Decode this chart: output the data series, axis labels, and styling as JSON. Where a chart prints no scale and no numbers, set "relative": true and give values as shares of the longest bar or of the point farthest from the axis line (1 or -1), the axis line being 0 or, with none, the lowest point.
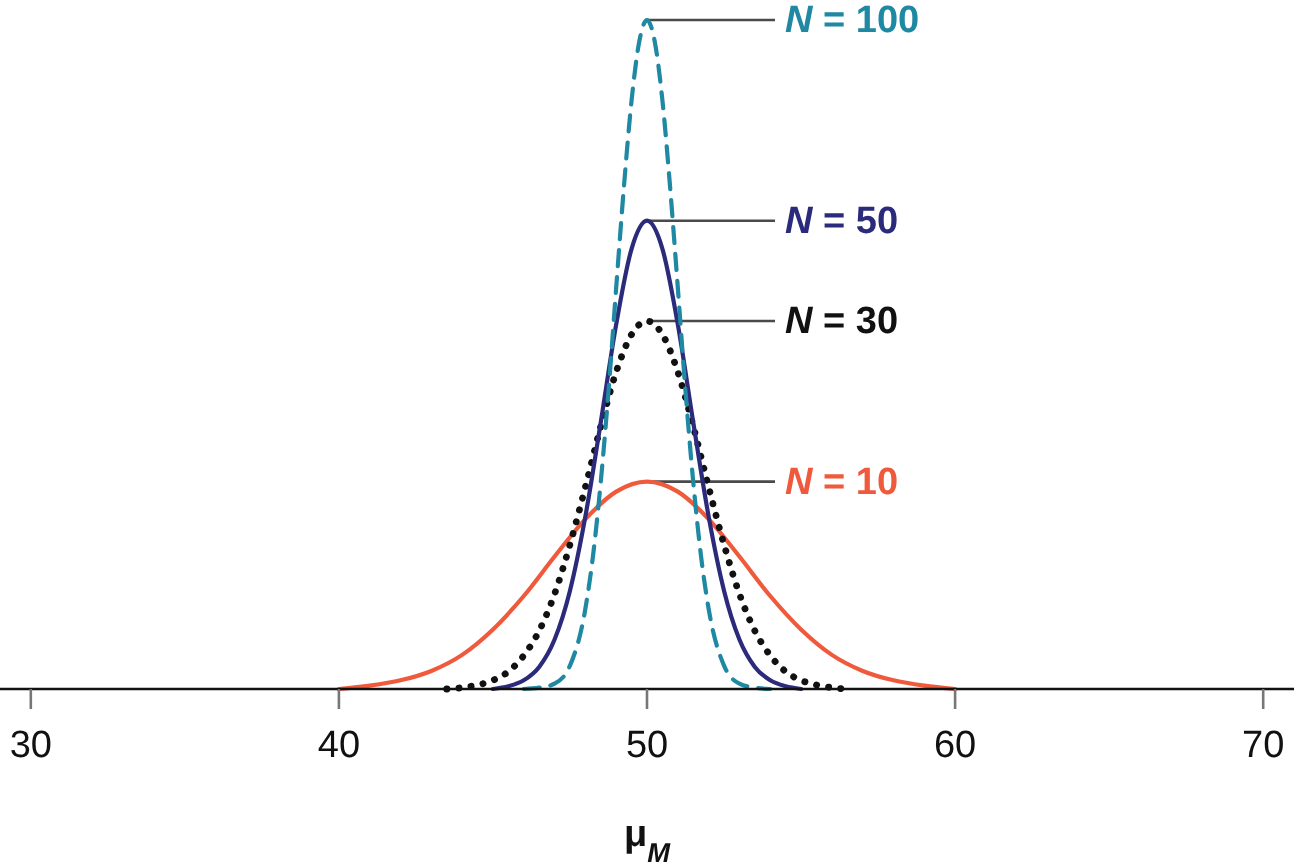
{
  "chart_data": {
    "type": "line",
    "relative": true,
    "xlabel": "μ$_{M}$",
    "xlim": [
      29,
      71
    ],
    "xticks": [
      30,
      40,
      50,
      60,
      70
    ],
    "series": [
      {
        "name": "N = 10",
        "color": "#f05a3c",
        "line_style": "solid",
        "x": [
          40,
          41,
          42,
          43,
          44,
          45,
          46,
          47,
          48,
          49,
          50,
          51,
          52,
          53,
          54,
          55,
          56,
          57,
          58,
          59,
          60
        ],
        "values": [
          0,
          0.005,
          0.013,
          0.027,
          0.051,
          0.089,
          0.139,
          0.198,
          0.254,
          0.295,
          0.31,
          0.295,
          0.254,
          0.198,
          0.139,
          0.089,
          0.051,
          0.027,
          0.013,
          0.005,
          0
        ]
      },
      {
        "name": "N = 30",
        "color": "#111111",
        "line_style": "dotted",
        "x": [
          43.5,
          44,
          44.5,
          45,
          45.5,
          46,
          46.5,
          47,
          47.5,
          48,
          48.5,
          49,
          49.5,
          50,
          50.5,
          51,
          51.5,
          52,
          52.5,
          53,
          53.5,
          54,
          54.5,
          55,
          55.5,
          56,
          56.5
        ],
        "values": [
          0,
          0.002,
          0.006,
          0.013,
          0.026,
          0.05,
          0.087,
          0.142,
          0.216,
          0.302,
          0.393,
          0.474,
          0.53,
          0.55,
          0.53,
          0.474,
          0.393,
          0.302,
          0.216,
          0.142,
          0.087,
          0.05,
          0.026,
          0.013,
          0.006,
          0.002,
          0
        ]
      },
      {
        "name": "N = 50",
        "color": "#2b2a7b",
        "line_style": "solid",
        "x": [
          45,
          45.5,
          46,
          46.5,
          47,
          47.5,
          48,
          48.5,
          49,
          49.5,
          50,
          50.5,
          51,
          51.5,
          52,
          52.5,
          53,
          53.5,
          54,
          54.5,
          55
        ],
        "values": [
          0,
          0.004,
          0.013,
          0.033,
          0.074,
          0.147,
          0.258,
          0.399,
          0.545,
          0.658,
          0.7,
          0.658,
          0.545,
          0.399,
          0.258,
          0.147,
          0.074,
          0.033,
          0.013,
          0.004,
          0
        ]
      },
      {
        "name": "N = 100",
        "color": "#1f88a3",
        "line_style": "dashed",
        "x": [
          46,
          46.5,
          47,
          47.5,
          48,
          48.25,
          48.5,
          48.75,
          49,
          49.25,
          49.5,
          49.75,
          50,
          50.25,
          50.5,
          50.75,
          51,
          51.25,
          51.5,
          51.75,
          52,
          52.5,
          53,
          53.5,
          54
        ],
        "values": [
          0,
          0.002,
          0.008,
          0.035,
          0.12,
          0.2,
          0.31,
          0.445,
          0.6,
          0.75,
          0.88,
          0.968,
          1,
          0.968,
          0.88,
          0.75,
          0.6,
          0.445,
          0.31,
          0.2,
          0.12,
          0.035,
          0.008,
          0.002,
          0
        ]
      }
    ]
  }
}
